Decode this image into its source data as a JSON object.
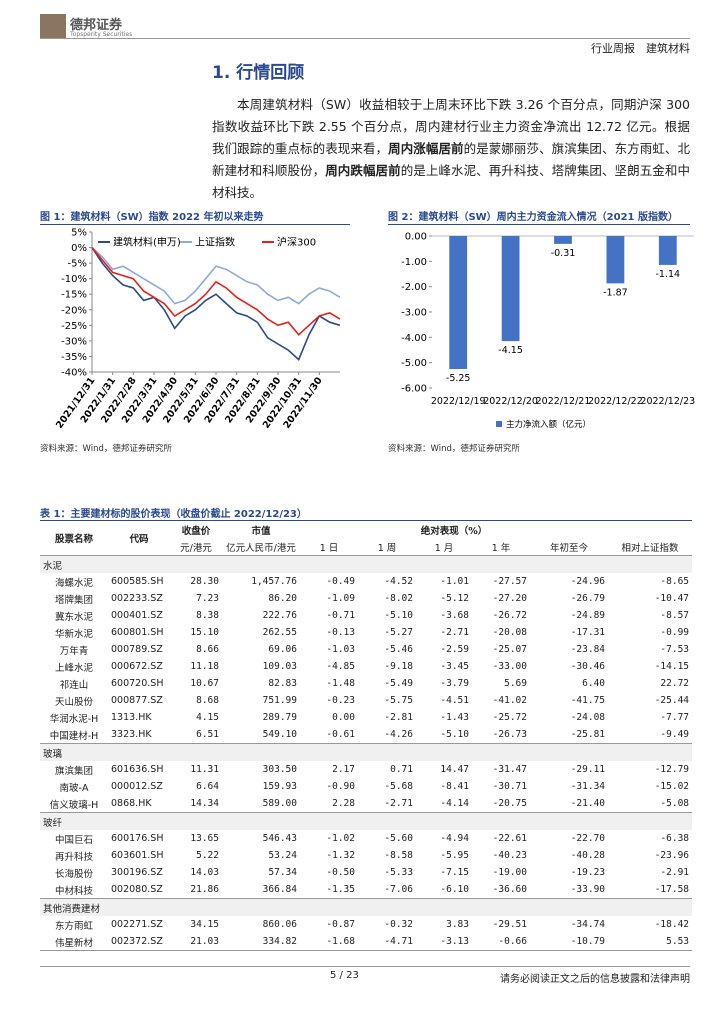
{
  "header": {
    "brand": "德邦证券",
    "brand_en": "Topsperity Securities",
    "report_type": "行业周报",
    "industry": "建筑材料"
  },
  "section_title": "1. 行情回顾",
  "paragraph": [
    {
      "text": "本周建筑材料（SW）收益相较于上周末环比下跌 3.26 个百分点，同期沪深 300 指数收益环比下跌 2.55 个百分点，周内建材行业主力资金净流出 12.72 亿元。根据我们跟踪的重点标的表现来看，",
      "bold": false
    },
    {
      "text": "周内涨幅居前",
      "bold": true
    },
    {
      "text": "的是蒙娜丽莎、旗滨集团、东方雨虹、北新建材和科顺股份，",
      "bold": false
    },
    {
      "text": "周内跌幅居前",
      "bold": true
    },
    {
      "text": "的是上峰水泥、再升科技、塔牌集团、坚朗五金和中材科技。",
      "bold": false
    }
  ],
  "chart_data": [
    {
      "type": "line",
      "caption": "图 1：建筑材料（SW）指数 2022 年初以来走势",
      "source": "资料来源：Wind，德邦证券研究所",
      "categories": [
        "2021/12/31",
        null,
        "2022/1/31",
        null,
        "2022/2/28",
        null,
        "2022/3/31",
        null,
        "2022/4/30",
        null,
        "2022/5/31",
        null,
        "2022/6/30",
        null,
        "2022/7/31",
        null,
        "2022/8/31",
        null,
        "2022/9/30",
        null,
        "2022/10/31",
        null,
        "2022/11/30",
        null,
        null
      ],
      "series": [
        {
          "name": "建筑材料(申万)",
          "color": "#2a4a8c",
          "values": [
            0,
            -5,
            -9,
            -12,
            -13,
            -17,
            -16,
            -20,
            -26,
            -22,
            -20,
            -17,
            -15,
            -18,
            -21,
            -22,
            -24,
            -29,
            -31,
            -33,
            -36,
            -28,
            -22,
            -24,
            -25
          ]
        },
        {
          "name": "上证指数",
          "color": "#8eaadb",
          "values": [
            0,
            -3,
            -7,
            -6,
            -8,
            -10,
            -12,
            -14,
            -18,
            -17,
            -14,
            -10,
            -6,
            -7,
            -9,
            -11,
            -12,
            -15,
            -17,
            -16,
            -18,
            -15,
            -13,
            -14,
            -16
          ]
        },
        {
          "name": "沪深300",
          "color": "#e2231a",
          "values": [
            0,
            -4,
            -8,
            -9,
            -10,
            -14,
            -16,
            -18,
            -22,
            -20,
            -18,
            -15,
            -11,
            -13,
            -16,
            -18,
            -20,
            -23,
            -25,
            -24,
            -28,
            -25,
            -22,
            -21,
            -23
          ]
        }
      ],
      "ylim": [
        -40,
        5
      ],
      "yticks": [
        {
          "value": 5,
          "label": "5%"
        },
        {
          "value": 0,
          "label": "0%"
        },
        {
          "value": -5,
          "label": "-5%"
        },
        {
          "value": -10,
          "label": "-10%"
        },
        {
          "value": -15,
          "label": "-15%"
        },
        {
          "value": -20,
          "label": "-20%"
        },
        {
          "value": -25,
          "label": "-25%"
        },
        {
          "value": -30,
          "label": "-30%"
        },
        {
          "value": -35,
          "label": "-35%"
        },
        {
          "value": -40,
          "label": "-40%"
        }
      ],
      "legend": "top",
      "grid": false
    },
    {
      "type": "bar",
      "caption": "图 2：建筑材料（SW）周内主力资金流入情况（2021 版指数）",
      "source": "资料来源：Wind，德邦证券研究所",
      "categories": [
        "2022/12/19",
        "2022/12/20",
        "2022/12/21",
        "2022/12/22",
        "2022/12/23"
      ],
      "series": [
        {
          "name": "主力净流入额（亿元）",
          "color": "#4472c4",
          "values": [
            -5.25,
            -4.15,
            -0.31,
            -1.87,
            -1.14
          ]
        }
      ],
      "ylim": [
        -6,
        0
      ],
      "yticks": [
        {
          "value": 0,
          "label": "0.00"
        },
        {
          "value": -1,
          "label": "-1.00"
        },
        {
          "value": -2,
          "label": "-2.00"
        },
        {
          "value": -3,
          "label": "-3.00"
        },
        {
          "value": -4,
          "label": "-4.00"
        },
        {
          "value": -5,
          "label": "-5.00"
        },
        {
          "value": -6,
          "label": "-6.00"
        }
      ],
      "legend": "bottom",
      "grid": false
    }
  ],
  "table": {
    "caption": "表 1：主要建材标的股价表现（收盘价截止 2022/12/23）",
    "header": [
      [
        "股票名称",
        "代码",
        "收盘价",
        "市值",
        "绝对表现（%）"
      ],
      [
        "元/港元",
        "亿元人民币/港元",
        "1 日",
        "1 周",
        "1 月",
        "1 年",
        "年初至今",
        "相对上证指数"
      ]
    ],
    "groups": [
      {
        "name": "水泥",
        "rows": [
          [
            "海螺水泥",
            "600585.SH",
            "28.30",
            "1,457.76",
            "-0.49",
            "-4.52",
            "-1.01",
            "-27.57",
            "-24.96",
            "-8.65"
          ],
          [
            "塔牌集团",
            "002233.SZ",
            "7.23",
            "86.20",
            "-1.09",
            "-8.02",
            "-5.12",
            "-27.20",
            "-26.79",
            "-10.47"
          ],
          [
            "冀东水泥",
            "000401.SZ",
            "8.38",
            "222.76",
            "-0.71",
            "-5.10",
            "-3.68",
            "-26.72",
            "-24.89",
            "-8.57"
          ],
          [
            "华新水泥",
            "600801.SH",
            "15.10",
            "262.55",
            "-0.13",
            "-5.27",
            "-2.71",
            "-20.08",
            "-17.31",
            "-0.99"
          ],
          [
            "万年青",
            "000789.SZ",
            "8.66",
            "69.06",
            "-1.03",
            "-5.46",
            "-2.59",
            "-25.07",
            "-23.84",
            "-7.53"
          ],
          [
            "上峰水泥",
            "000672.SZ",
            "11.18",
            "109.03",
            "-4.85",
            "-9.18",
            "-3.45",
            "-33.00",
            "-30.46",
            "-14.15"
          ],
          [
            "祁连山",
            "600720.SH",
            "10.67",
            "82.83",
            "-1.48",
            "-5.49",
            "-3.79",
            "5.69",
            "6.40",
            "22.72"
          ],
          [
            "天山股份",
            "000877.SZ",
            "8.68",
            "751.99",
            "-0.23",
            "-5.75",
            "-4.51",
            "-41.02",
            "-41.75",
            "-25.44"
          ],
          [
            "华润水泥-H",
            "1313.HK",
            "4.15",
            "289.79",
            "0.00",
            "-2.81",
            "-1.43",
            "-25.72",
            "-24.08",
            "-7.77"
          ],
          [
            "中国建材-H",
            "3323.HK",
            "6.51",
            "549.10",
            "-0.61",
            "-4.26",
            "-5.10",
            "-26.73",
            "-25.81",
            "-9.49"
          ]
        ]
      },
      {
        "name": "玻璃",
        "rows": [
          [
            "旗滨集团",
            "601636.SH",
            "11.31",
            "303.50",
            "2.17",
            "0.71",
            "14.47",
            "-31.47",
            "-29.11",
            "-12.79"
          ],
          [
            "南玻-A",
            "000012.SZ",
            "6.64",
            "159.93",
            "-0.90",
            "-5.68",
            "-8.41",
            "-30.71",
            "-31.34",
            "-15.02"
          ],
          [
            "信义玻璃-H",
            "0868.HK",
            "14.34",
            "589.00",
            "2.28",
            "-2.71",
            "-4.14",
            "-20.75",
            "-21.40",
            "-5.08"
          ]
        ]
      },
      {
        "name": "玻纤",
        "rows": [
          [
            "中国巨石",
            "600176.SH",
            "13.65",
            "546.43",
            "-1.02",
            "-5.60",
            "-4.94",
            "-22.61",
            "-22.70",
            "-6.38"
          ],
          [
            "再升科技",
            "603601.SH",
            "5.22",
            "53.24",
            "-1.32",
            "-8.58",
            "-5.95",
            "-40.23",
            "-40.28",
            "-23.96"
          ],
          [
            "长海股份",
            "300196.SZ",
            "14.03",
            "57.34",
            "-0.50",
            "-5.33",
            "-7.15",
            "-19.00",
            "-19.23",
            "-2.91"
          ],
          [
            "中材科技",
            "002080.SZ",
            "21.86",
            "366.84",
            "-1.35",
            "-7.06",
            "-6.10",
            "-36.60",
            "-33.90",
            "-17.58"
          ]
        ]
      },
      {
        "name": "其他消费建材",
        "rows": [
          [
            "东方雨虹",
            "002271.SZ",
            "34.15",
            "860.06",
            "-0.87",
            "-0.32",
            "3.83",
            "-29.51",
            "-34.74",
            "-18.42"
          ],
          [
            "伟星新材",
            "002372.SZ",
            "21.03",
            "334.82",
            "-1.68",
            "-4.71",
            "-3.13",
            "-0.66",
            "-10.79",
            "5.53"
          ]
        ]
      }
    ]
  },
  "footer": {
    "page": "5 / 23",
    "disclaimer": "请务必阅读正文之后的信息披露和法律声明"
  }
}
